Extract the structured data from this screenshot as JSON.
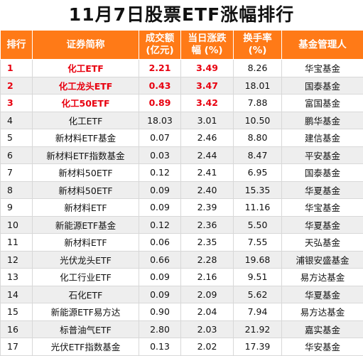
{
  "title": "11月7日股票ETF涨幅排行",
  "headers": {
    "rank": "排行",
    "name": "证券简称",
    "turnover_line1": "成交额",
    "turnover_line2": "(亿元)",
    "change_line1": "当日涨跌",
    "change_line2": "幅 (%)",
    "turnover_rate_line1": "换手率",
    "turnover_rate_line2": "(%)",
    "manager": "基金管理人"
  },
  "rows": [
    {
      "rank": "1",
      "name": "化工ETF",
      "turnover": "2.21",
      "change": "3.49",
      "rate": "8.26",
      "manager": "华宝基金"
    },
    {
      "rank": "2",
      "name": "化工龙头ETF",
      "turnover": "0.43",
      "change": "3.47",
      "rate": "18.01",
      "manager": "国泰基金"
    },
    {
      "rank": "3",
      "name": "化工50ETF",
      "turnover": "0.89",
      "change": "3.42",
      "rate": "7.88",
      "manager": "富国基金"
    },
    {
      "rank": "4",
      "name": "化工ETF",
      "turnover": "18.03",
      "change": "3.01",
      "rate": "10.50",
      "manager": "鹏华基金"
    },
    {
      "rank": "5",
      "name": "新材料ETF基金",
      "turnover": "0.07",
      "change": "2.46",
      "rate": "8.80",
      "manager": "建信基金"
    },
    {
      "rank": "6",
      "name": "新材料ETF指数基金",
      "turnover": "0.03",
      "change": "2.44",
      "rate": "8.47",
      "manager": "平安基金"
    },
    {
      "rank": "7",
      "name": "新材料50ETF",
      "turnover": "0.12",
      "change": "2.41",
      "rate": "6.95",
      "manager": "国泰基金"
    },
    {
      "rank": "8",
      "name": "新材料50ETF",
      "turnover": "0.09",
      "change": "2.40",
      "rate": "15.35",
      "manager": "华夏基金"
    },
    {
      "rank": "9",
      "name": "新材料ETF",
      "turnover": "0.09",
      "change": "2.39",
      "rate": "11.16",
      "manager": "华宝基金"
    },
    {
      "rank": "10",
      "name": "新能源ETF基金",
      "turnover": "0.12",
      "change": "2.36",
      "rate": "5.50",
      "manager": "华夏基金"
    },
    {
      "rank": "11",
      "name": "新材料ETF",
      "turnover": "0.06",
      "change": "2.35",
      "rate": "7.55",
      "manager": "天弘基金"
    },
    {
      "rank": "12",
      "name": "光伏龙头ETF",
      "turnover": "0.66",
      "change": "2.28",
      "rate": "19.68",
      "manager": "浦银安盛基金"
    },
    {
      "rank": "13",
      "name": "化工行业ETF",
      "turnover": "0.09",
      "change": "2.16",
      "rate": "9.51",
      "manager": "易方达基金"
    },
    {
      "rank": "14",
      "name": "石化ETF",
      "turnover": "0.09",
      "change": "2.09",
      "rate": "5.62",
      "manager": "华夏基金"
    },
    {
      "rank": "15",
      "name": "新能源ETF易方达",
      "turnover": "0.90",
      "change": "2.04",
      "rate": "7.94",
      "manager": "易方达基金"
    },
    {
      "rank": "16",
      "name": "标普油气ETF",
      "turnover": "2.80",
      "change": "2.03",
      "rate": "21.92",
      "manager": "嘉实基金"
    },
    {
      "rank": "17",
      "name": "光伏ETF指数基金",
      "turnover": "0.13",
      "change": "2.02",
      "rate": "17.39",
      "manager": "华安基金"
    }
  ],
  "colors": {
    "header_bg": "#ff7a17",
    "highlight_text": "#e8000f",
    "stripe": "#eeeeee"
  }
}
